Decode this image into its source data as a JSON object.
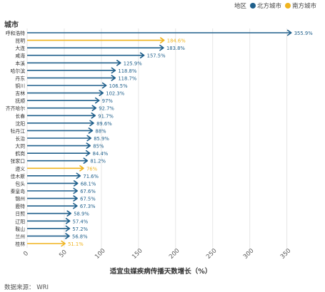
{
  "legend": {
    "title": "地区",
    "north_label": "北方城市",
    "south_label": "南方城市"
  },
  "colors": {
    "north": "#1f5f8b",
    "south": "#f0b41e",
    "grid": "#e6e6e6",
    "axis_text": "#555555"
  },
  "source": "数据来源：  WRI",
  "chart_data": {
    "type": "bar",
    "orientation": "horizontal",
    "title": "",
    "ylabel": "城市",
    "xlabel": "适宜虫媒疾病传播天数增长（%）",
    "xlim": [
      0,
      360
    ],
    "xticks": [
      0,
      50,
      100,
      150,
      200,
      250,
      300,
      350
    ],
    "grid": true,
    "legend_position": "top-right",
    "bar_style": "arrow",
    "categories": [
      "呼和浩特",
      "昆明",
      "大连",
      "咸海",
      "本溪",
      "哈尔滨",
      "丹东",
      "铜川",
      "吉林",
      "抚顺",
      "齐齐哈尔",
      "长春",
      "沈阳",
      "牡丹江",
      "长治",
      "大同",
      "鹤岗",
      "张家口",
      "遵义",
      "佳木斯",
      "包头",
      "秦皇岛",
      "锦州",
      "鹿特",
      "日照",
      "辽阳",
      "鞍山",
      "兰州",
      "桂林"
    ],
    "values": [
      355.9,
      184.6,
      183.8,
      157.5,
      125.9,
      118.8,
      118.7,
      106.5,
      102.3,
      97,
      92.7,
      91.7,
      89.6,
      88,
      85.9,
      85,
      84.4,
      81.2,
      76,
      71.6,
      68.1,
      67.6,
      67.5,
      67.3,
      58.9,
      57.4,
      57.2,
      56.8,
      51.1
    ],
    "labels": [
      "355.9%",
      "184.6%",
      "183.8%",
      "157.5%",
      "125.9%",
      "118.8%",
      "118.7%",
      "106.5%",
      "102.3%",
      "97%",
      "92.7%",
      "91.7%",
      "89.6%",
      "88%",
      "85.9%",
      "85%",
      "84.4%",
      "81.2%",
      "76%",
      "71.6%",
      "68.1%",
      "67.6%",
      "67.5%",
      "67.3%",
      "58.9%",
      "57.4%",
      "57.2%",
      "56.8%",
      "51.1%"
    ],
    "region": [
      "north",
      "south",
      "north",
      "north",
      "north",
      "north",
      "north",
      "north",
      "north",
      "north",
      "north",
      "north",
      "north",
      "north",
      "north",
      "north",
      "north",
      "north",
      "south",
      "north",
      "north",
      "north",
      "north",
      "north",
      "north",
      "north",
      "north",
      "north",
      "south"
    ]
  }
}
